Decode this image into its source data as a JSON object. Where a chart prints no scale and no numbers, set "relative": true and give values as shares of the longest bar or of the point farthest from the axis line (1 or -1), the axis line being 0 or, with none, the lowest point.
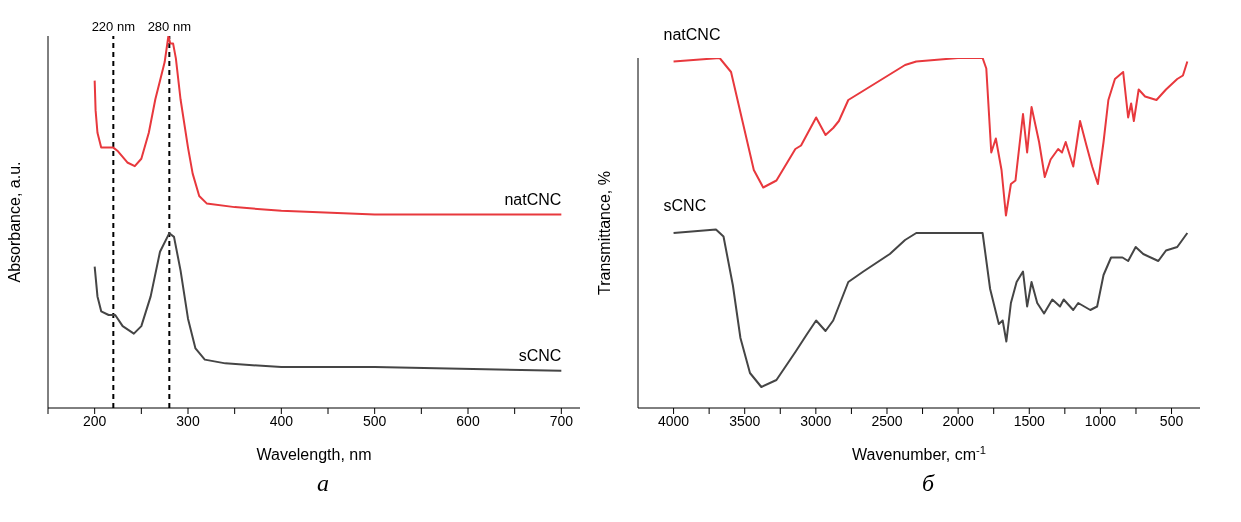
{
  "chart_data": [
    {
      "type": "line",
      "relative": true,
      "xlabel": "Wavelength, nm",
      "ylabel": "Absorbance, a.u.",
      "xlim": [
        150,
        720
      ],
      "xticks": [
        {
          "value": 150,
          "label": null
        },
        200,
        {
          "value": 250,
          "label": null
        },
        300,
        {
          "value": 350,
          "label": null
        },
        400,
        {
          "value": 450,
          "label": null
        },
        500,
        {
          "value": 550,
          "label": null
        },
        600,
        {
          "value": 650,
          "label": null
        },
        700
      ],
      "line_style": "solid",
      "series": [
        {
          "name": "natCNC",
          "color": "#e8383d",
          "x": [
            200,
            201,
            203,
            207,
            215,
            220,
            225,
            235,
            243,
            250,
            258,
            265,
            270,
            275,
            279,
            281,
            284,
            287,
            292,
            300,
            305,
            312,
            320,
            350,
            400,
            500,
            600,
            700
          ],
          "values": [
            0.88,
            0.8,
            0.74,
            0.7,
            0.7,
            0.7,
            0.69,
            0.66,
            0.65,
            0.67,
            0.74,
            0.83,
            0.88,
            0.93,
            1,
            0.98,
            0.98,
            0.94,
            0.83,
            0.7,
            0.63,
            0.57,
            0.55,
            0.54,
            0.53,
            0.52,
            0.52,
            0.52
          ]
        },
        {
          "name": "sCNC",
          "color": "#454545",
          "x": [
            200,
            203,
            207,
            215,
            222,
            230,
            242,
            250,
            260,
            270,
            280,
            285,
            292,
            300,
            308,
            318,
            340,
            400,
            500,
            700
          ],
          "values": [
            0.38,
            0.3,
            0.26,
            0.25,
            0.25,
            0.22,
            0.2,
            0.22,
            0.3,
            0.42,
            0.47,
            0.46,
            0.37,
            0.24,
            0.16,
            0.13,
            0.12,
            0.11,
            0.11,
            0.1
          ]
        }
      ],
      "ref_lines": [
        {
          "axis": "x",
          "value": 220,
          "label": "220 nm",
          "color": "#000000",
          "line_style": "dashed"
        },
        {
          "axis": "x",
          "value": 280,
          "label": "280 nm",
          "color": "#000000",
          "line_style": "dashed"
        }
      ],
      "annotations": [
        "а"
      ]
    },
    {
      "type": "line",
      "relative": true,
      "xlabel": "Wavenumber, cm$^{-1}$",
      "ylabel": "Transmittance, %",
      "xlim": [
        4250,
        300
      ],
      "xticks": [
        4000,
        {
          "value": 3750,
          "label": null
        },
        3500,
        {
          "value": 3250,
          "label": null
        },
        3000,
        {
          "value": 2750,
          "label": null
        },
        2500,
        {
          "value": 2250,
          "label": null
        },
        2000,
        {
          "value": 1750,
          "label": null
        },
        1500,
        {
          "value": 1250,
          "label": null
        },
        1000,
        {
          "value": 750,
          "label": null
        },
        500
      ],
      "line_style": "solid",
      "series": [
        {
          "name": "natCNC",
          "color": "#e8383d",
          "x": [
            4000,
            3676,
            3596,
            3516,
            3436,
            3370,
            3277,
            3144,
            3104,
            2998,
            2932,
            2878,
            2838,
            2772,
            2692,
            2373,
            2294,
            2001,
            1828,
            1802,
            1767,
            1735,
            1695,
            1664,
            1629,
            1597,
            1544,
            1515,
            1484,
            1431,
            1391,
            1350,
            1297,
            1270,
            1244,
            1191,
            1143,
            1098,
            1058,
            1018,
            978,
            944,
            898,
            840,
            805,
            784,
            765,
            731,
            686,
            606,
            539,
            460,
            420,
            389
          ],
          "values": [
            0.99,
            1,
            0.96,
            0.82,
            0.68,
            0.63,
            0.65,
            0.74,
            0.75,
            0.83,
            0.78,
            0.8,
            0.82,
            0.88,
            0.9,
            0.98,
            0.99,
            1,
            1,
            0.97,
            0.73,
            0.77,
            0.68,
            0.55,
            0.64,
            0.65,
            0.84,
            0.73,
            0.86,
            0.76,
            0.66,
            0.71,
            0.74,
            0.73,
            0.76,
            0.69,
            0.82,
            0.75,
            0.69,
            0.64,
            0.76,
            0.88,
            0.94,
            0.96,
            0.83,
            0.87,
            0.82,
            0.91,
            0.89,
            0.88,
            0.91,
            0.94,
            0.95,
            0.99
          ]
        },
        {
          "name": "sCNC",
          "color": "#454545",
          "x": [
            4000,
            3702,
            3649,
            3583,
            3530,
            3463,
            3383,
            3277,
            3144,
            3064,
            2998,
            2932,
            2878,
            2772,
            2666,
            2480,
            2373,
            2294,
            2001,
            1828,
            1775,
            1714,
            1687,
            1661,
            1629,
            1589,
            1544,
            1515,
            1484,
            1444,
            1396,
            1338,
            1284,
            1258,
            1191,
            1156,
            1071,
            1023,
            978,
            925,
            845,
            805,
            752,
            699,
            593,
            539,
            460,
            389
          ],
          "values": [
            0.5,
            0.51,
            0.49,
            0.35,
            0.2,
            0.1,
            0.06,
            0.08,
            0.16,
            0.21,
            0.25,
            0.22,
            0.25,
            0.36,
            0.39,
            0.44,
            0.48,
            0.5,
            0.5,
            0.5,
            0.34,
            0.24,
            0.25,
            0.19,
            0.3,
            0.36,
            0.39,
            0.29,
            0.36,
            0.3,
            0.27,
            0.31,
            0.29,
            0.31,
            0.28,
            0.3,
            0.28,
            0.29,
            0.38,
            0.43,
            0.43,
            0.42,
            0.46,
            0.44,
            0.42,
            0.45,
            0.46,
            0.5
          ]
        }
      ],
      "annotations": [
        "б"
      ]
    }
  ]
}
